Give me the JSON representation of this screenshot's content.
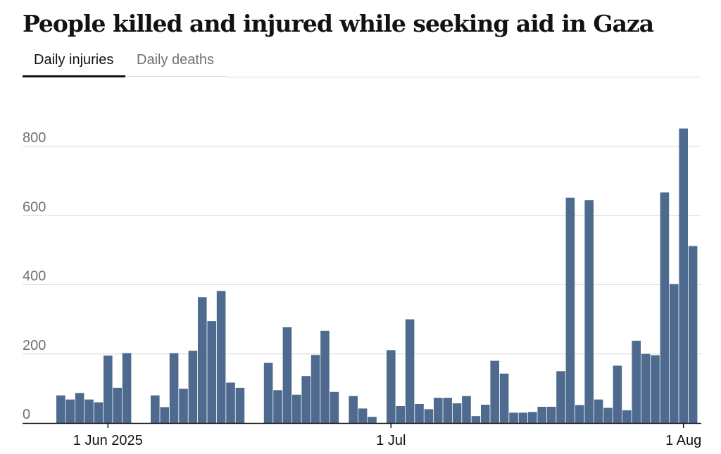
{
  "title": "People killed and injured while seeking aid in Gaza",
  "tabs": [
    {
      "label": "Daily injuries",
      "active": true
    },
    {
      "label": "Daily deaths",
      "active": false
    }
  ],
  "colors": {
    "bar": "#4e6a8e",
    "grid": "#dcdcdc",
    "axis": "#121212",
    "tick_label": "#707070",
    "title": "#121212"
  },
  "chart_data": {
    "type": "bar",
    "title": "People killed and injured while seeking aid in Gaza",
    "series_label": "Daily injuries",
    "x_axis": "date",
    "x": [
      "2025-05-27",
      "2025-05-28",
      "2025-05-29",
      "2025-05-30",
      "2025-05-31",
      "2025-06-01",
      "2025-06-02",
      "2025-06-03",
      "2025-06-04",
      "2025-06-05",
      "2025-06-06",
      "2025-06-07",
      "2025-06-08",
      "2025-06-09",
      "2025-06-10",
      "2025-06-11",
      "2025-06-12",
      "2025-06-13",
      "2025-06-14",
      "2025-06-15",
      "2025-06-16",
      "2025-06-17",
      "2025-06-18",
      "2025-06-19",
      "2025-06-20",
      "2025-06-21",
      "2025-06-22",
      "2025-06-23",
      "2025-06-24",
      "2025-06-25",
      "2025-06-26",
      "2025-06-27",
      "2025-06-28",
      "2025-06-29",
      "2025-06-30",
      "2025-07-01",
      "2025-07-02",
      "2025-07-03",
      "2025-07-04",
      "2025-07-05",
      "2025-07-06",
      "2025-07-07",
      "2025-07-08",
      "2025-07-09",
      "2025-07-10",
      "2025-07-11",
      "2025-07-12",
      "2025-07-13",
      "2025-07-14",
      "2025-07-15",
      "2025-07-16",
      "2025-07-17",
      "2025-07-18",
      "2025-07-19",
      "2025-07-20",
      "2025-07-21",
      "2025-07-22",
      "2025-07-23",
      "2025-07-24",
      "2025-07-25",
      "2025-07-26",
      "2025-07-27",
      "2025-07-28",
      "2025-07-29",
      "2025-07-30",
      "2025-07-31",
      "2025-08-01",
      "2025-08-02"
    ],
    "values": [
      80,
      68,
      87,
      68,
      60,
      195,
      102,
      202,
      0,
      0,
      80,
      46,
      202,
      99,
      209,
      364,
      295,
      382,
      117,
      102,
      0,
      0,
      174,
      95,
      277,
      82,
      136,
      197,
      267,
      90,
      0,
      78,
      42,
      18,
      0,
      211,
      49,
      300,
      55,
      40,
      73,
      73,
      57,
      78,
      20,
      53,
      180,
      143,
      30,
      30,
      32,
      47,
      47,
      150,
      652,
      52,
      645,
      68,
      44,
      166,
      37,
      238,
      200,
      196,
      667,
      402,
      852,
      512
    ],
    "ylim": [
      0,
      900
    ],
    "yticks": [
      0,
      200,
      400,
      600,
      800
    ],
    "xticks": [
      {
        "date": "2025-06-01",
        "label": "1 Jun 2025"
      },
      {
        "date": "2025-07-01",
        "label": "1 Jul"
      },
      {
        "date": "2025-08-01",
        "label": "1 Aug"
      }
    ],
    "grid": true,
    "legend": "none"
  }
}
